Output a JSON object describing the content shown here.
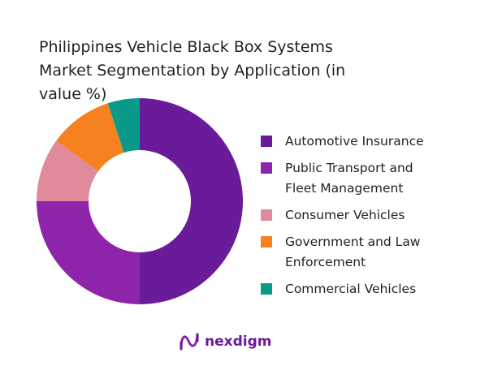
{
  "chart_data": {
    "type": "pie",
    "title": "Philippines Vehicle Black Box Systems Market Segmentation by Application (in value %)",
    "categories": [
      "Automotive Insurance",
      "Public Transport and Fleet Management",
      "Consumer Vehicles",
      "Government and Law Enforcement",
      "Commercial Vehicles"
    ],
    "values": [
      50,
      25,
      10,
      10,
      5
    ],
    "colors": [
      "#6a1b9a",
      "#8e24aa",
      "#e08a9c",
      "#f5821f",
      "#0a9a8a"
    ],
    "donut": true
  },
  "logo": "nexdigm"
}
